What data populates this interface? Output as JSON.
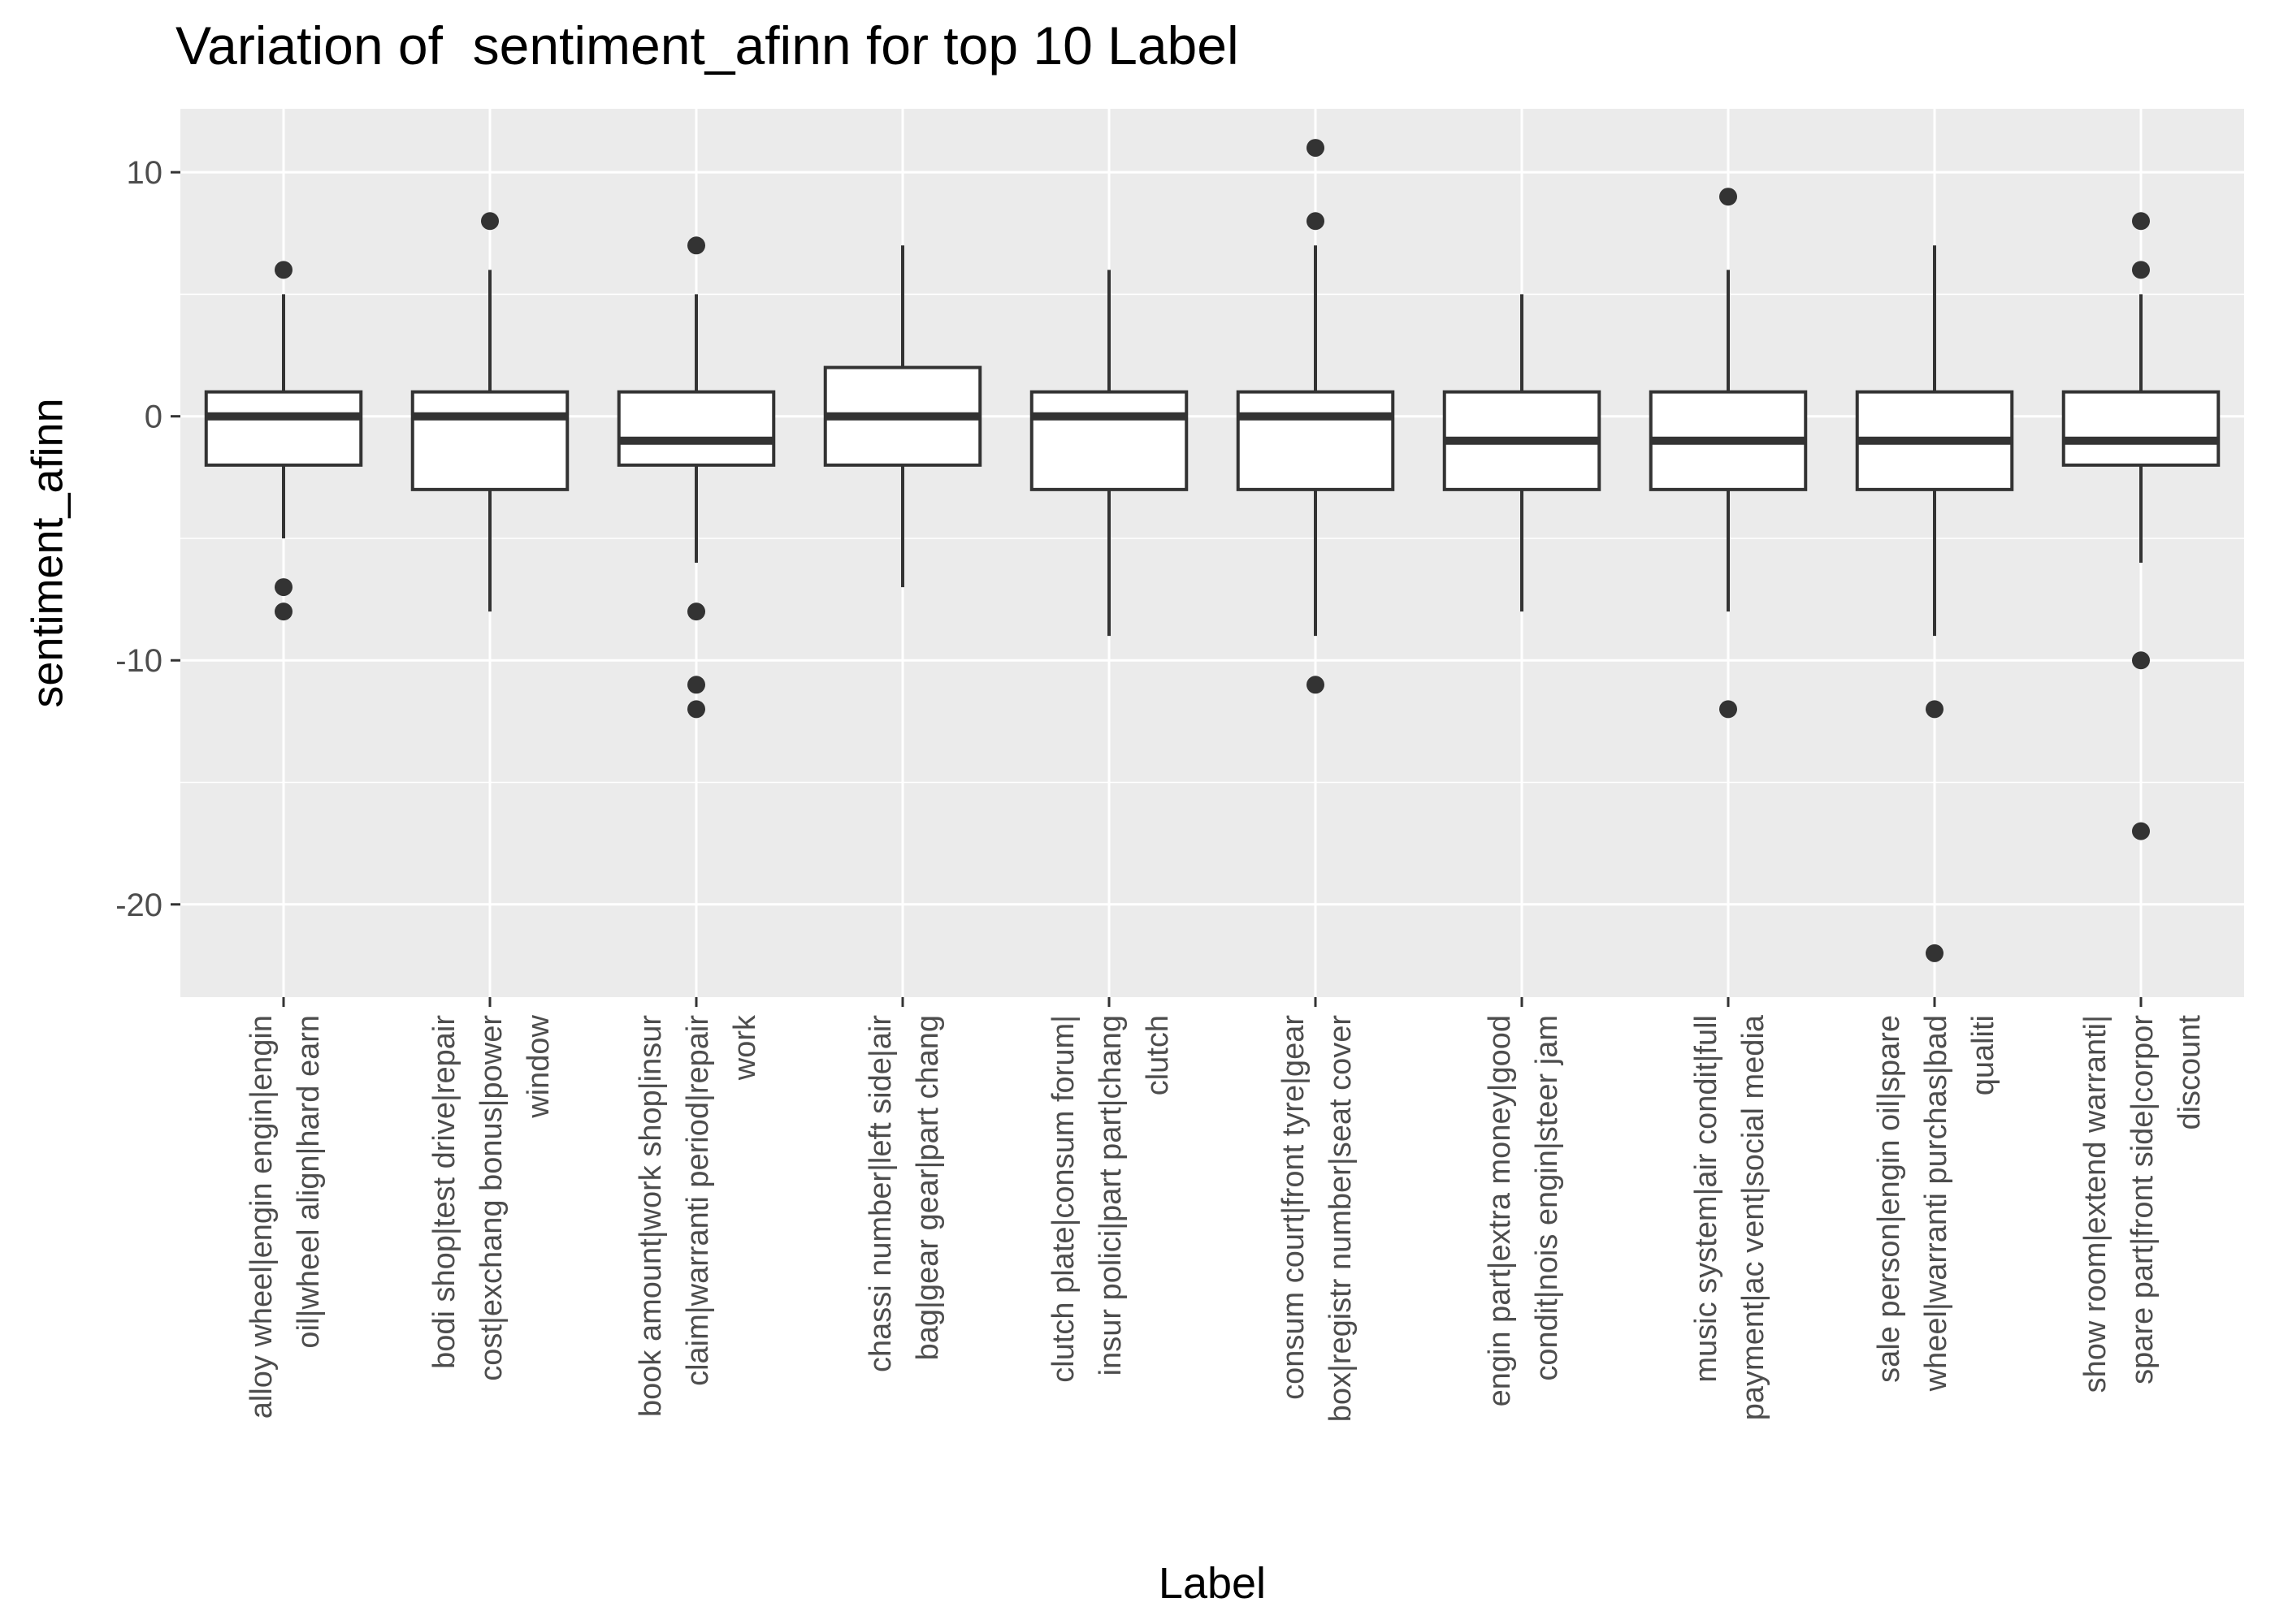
{
  "chart_data": {
    "type": "box",
    "title": "Variation of  sentiment_afinn for top 10 Label",
    "xlabel": "Label",
    "ylabel": "sentiment_afinn",
    "ylim": [
      -23.8,
      12.6
    ],
    "yticks": [
      10,
      0,
      -10,
      -20
    ],
    "grid": true,
    "colors": {
      "panel": "#ebebeb",
      "grid": "#ffffff",
      "box_fill": "#ffffff",
      "box_line": "#333333",
      "text": "#4d4d4d"
    },
    "categories": [
      {
        "label_lines": [
          "alloy wheel|engin engin|engin",
          "oil|wheel align|hard earn"
        ],
        "whisker_low": -5,
        "q1": -2,
        "median": 0,
        "q3": 1,
        "whisker_high": 5,
        "outliers": [
          6,
          -7,
          -8
        ]
      },
      {
        "label_lines": [
          "bodi shop|test drive|repair",
          "cost|exchang bonus|power",
          "window"
        ],
        "whisker_low": -8,
        "q1": -3,
        "median": 0,
        "q3": 1,
        "whisker_high": 6,
        "outliers": [
          8
        ]
      },
      {
        "label_lines": [
          "book amount|work shop|insur",
          "claim|warranti period|repair",
          "work"
        ],
        "whisker_low": -6,
        "q1": -2,
        "median": -1,
        "q3": 1,
        "whisker_high": 5,
        "outliers": [
          7,
          -8,
          -11,
          -12
        ]
      },
      {
        "label_lines": [
          "chassi number|left side|air",
          "bag|gear gear|part chang"
        ],
        "whisker_low": -7,
        "q1": -2,
        "median": 0,
        "q3": 2,
        "whisker_high": 7,
        "outliers": []
      },
      {
        "label_lines": [
          "clutch plate|consum forum|",
          "insur polici|part part|chang",
          "clutch"
        ],
        "whisker_low": -9,
        "q1": -3,
        "median": 0,
        "q3": 1,
        "whisker_high": 6,
        "outliers": []
      },
      {
        "label_lines": [
          "consum court|front tyre|gear",
          "box|registr number|seat cover"
        ],
        "whisker_low": -9,
        "q1": -3,
        "median": 0,
        "q3": 1,
        "whisker_high": 7,
        "outliers": [
          11,
          8,
          -11
        ]
      },
      {
        "label_lines": [
          "engin part|extra money|good",
          "condit|nois engin|steer jam"
        ],
        "whisker_low": -8,
        "q1": -3,
        "median": -1,
        "q3": 1,
        "whisker_high": 5,
        "outliers": []
      },
      {
        "label_lines": [
          "music system|air condit|full",
          "payment|ac vent|social media"
        ],
        "whisker_low": -8,
        "q1": -3,
        "median": -1,
        "q3": 1,
        "whisker_high": 6,
        "outliers": [
          9,
          -12
        ]
      },
      {
        "label_lines": [
          "sale person|engin oil|spare",
          "wheel|warranti purchas|bad",
          "qualiti"
        ],
        "whisker_low": -9,
        "q1": -3,
        "median": -1,
        "q3": 1,
        "whisker_high": 7,
        "outliers": [
          -12,
          -22
        ]
      },
      {
        "label_lines": [
          "show room|extend warranti|",
          "spare part|front side|corpor",
          "discount"
        ],
        "whisker_low": -6,
        "q1": -2,
        "median": -1,
        "q3": 1,
        "whisker_high": 5,
        "outliers": [
          8,
          6,
          -10,
          -17
        ]
      }
    ]
  }
}
